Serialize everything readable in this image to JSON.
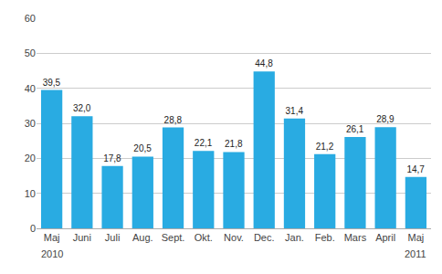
{
  "chart_data": {
    "type": "bar",
    "categories": [
      "Maj",
      "Juni",
      "Juli",
      "Aug.",
      "Sept.",
      "Okt.",
      "Nov.",
      "Dec.",
      "Jan.",
      "Feb.",
      "Mars",
      "April",
      "Maj"
    ],
    "values": [
      39.5,
      32.0,
      17.8,
      20.5,
      28.8,
      22.1,
      21.8,
      44.8,
      31.4,
      21.2,
      26.1,
      28.9,
      14.7
    ],
    "value_labels": [
      "39,5",
      "32,0",
      "17,8",
      "20,5",
      "28,8",
      "22,1",
      "21,8",
      "44,8",
      "31,4",
      "21,2",
      "26,1",
      "28,9",
      "14,7"
    ],
    "data_labels": true,
    "color": "#29abe2",
    "ylim": [
      0,
      60
    ],
    "yticks": [
      0,
      10,
      20,
      30,
      40,
      50,
      60
    ],
    "grid": true,
    "annotations": [
      {
        "text": "2010",
        "x": 0
      },
      {
        "text": "2011",
        "x": 12
      }
    ]
  }
}
